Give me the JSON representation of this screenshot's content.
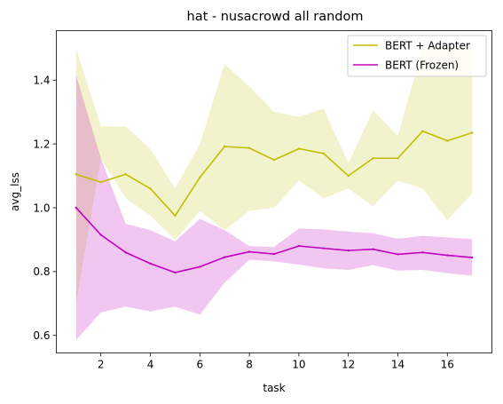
{
  "chart_data": {
    "type": "line",
    "title": "hat - nusacrowd all random",
    "xlabel": "task",
    "ylabel": "avg_lss",
    "xlim": [
      0.2,
      17.8
    ],
    "ylim": [
      0.545,
      1.555
    ],
    "x_ticks": [
      2,
      4,
      6,
      8,
      10,
      12,
      14,
      16
    ],
    "y_ticks": [
      0.6,
      0.8,
      1.0,
      1.2,
      1.4
    ],
    "x_tick_labels": [
      "2",
      "4",
      "6",
      "8",
      "10",
      "12",
      "14",
      "16"
    ],
    "y_tick_labels": [
      "0.6",
      "0.8",
      "1.0",
      "1.2",
      "1.4"
    ],
    "grid": false,
    "legend_position": "top-right",
    "x": [
      1,
      2,
      3,
      4,
      5,
      6,
      7,
      8,
      9,
      10,
      11,
      12,
      13,
      14,
      15,
      16,
      17
    ],
    "series": [
      {
        "name": "BERT + Adapter",
        "color": "#bfbf00",
        "values": [
          1.105,
          1.08,
          1.105,
          1.06,
          0.975,
          1.095,
          1.192,
          1.187,
          1.15,
          1.185,
          1.17,
          1.1,
          1.155,
          1.155,
          1.24,
          1.21,
          1.235
        ],
        "lower": [
          0.7,
          1.155,
          1.03,
          0.975,
          0.9,
          0.99,
          0.93,
          0.99,
          1.0,
          1.085,
          1.03,
          1.06,
          1.005,
          1.085,
          1.06,
          0.96,
          1.045
        ],
        "upper": [
          1.5,
          1.255,
          1.255,
          1.185,
          1.06,
          1.2,
          1.45,
          1.38,
          1.3,
          1.285,
          1.31,
          1.14,
          1.305,
          1.225,
          1.5,
          1.5,
          1.5
        ]
      },
      {
        "name": "BERT (Frozen)",
        "color": "#bf00bf",
        "values": [
          1.0,
          0.915,
          0.86,
          0.825,
          0.797,
          0.815,
          0.845,
          0.862,
          0.855,
          0.88,
          0.873,
          0.866,
          0.87,
          0.854,
          0.86,
          0.851,
          0.844
        ],
        "lower": [
          0.585,
          0.672,
          0.69,
          0.675,
          0.69,
          0.665,
          0.765,
          0.837,
          0.832,
          0.822,
          0.81,
          0.805,
          0.82,
          0.803,
          0.805,
          0.795,
          0.787
        ],
        "upper": [
          1.415,
          1.155,
          0.95,
          0.93,
          0.895,
          0.965,
          0.93,
          0.88,
          0.877,
          0.935,
          0.932,
          0.925,
          0.92,
          0.903,
          0.912,
          0.907,
          0.902
        ]
      }
    ]
  }
}
